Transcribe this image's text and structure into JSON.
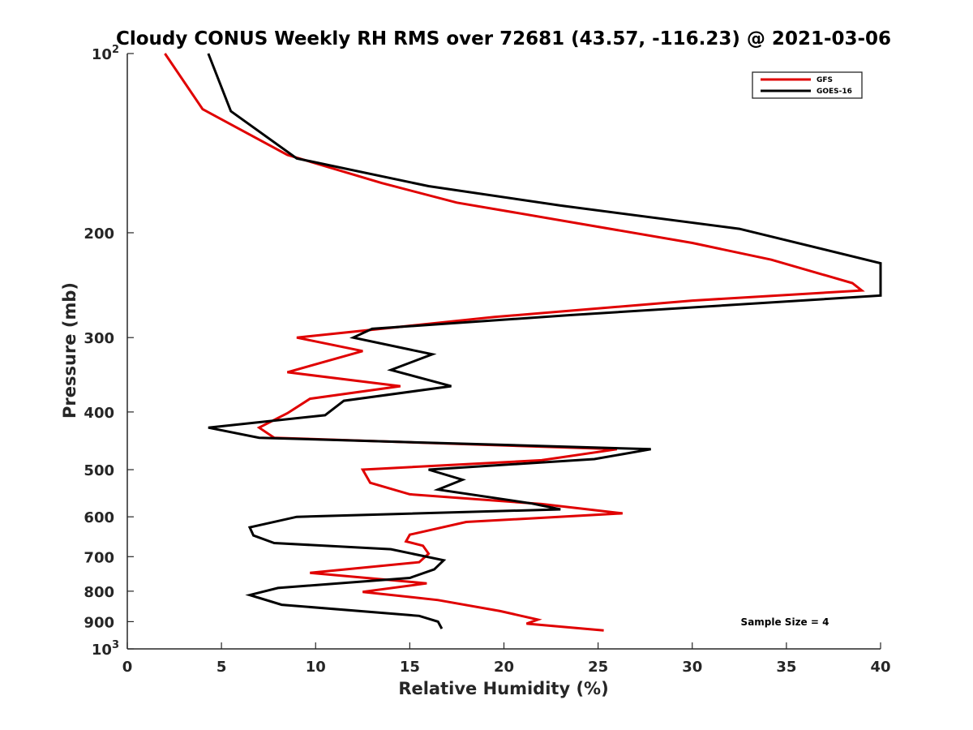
{
  "chart_data": {
    "type": "line",
    "title": "Cloudy CONUS Weekly RH RMS over 72681 (43.57, -116.23) @ 2021-03-06",
    "xlabel": "Relative Humidity (%)",
    "ylabel": "Pressure (mb)",
    "xlim": [
      0,
      40
    ],
    "ylim": [
      100,
      1000
    ],
    "y_scale": "log",
    "y_reversed": true,
    "grid": false,
    "legend_position": "top-right",
    "x_ticks": [
      {
        "value": 0,
        "label": "0"
      },
      {
        "value": 5,
        "label": "5"
      },
      {
        "value": 10,
        "label": "10"
      },
      {
        "value": 15,
        "label": "15"
      },
      {
        "value": 20,
        "label": "20"
      },
      {
        "value": 25,
        "label": "25"
      },
      {
        "value": 30,
        "label": "30"
      },
      {
        "value": 35,
        "label": "35"
      },
      {
        "value": 40,
        "label": "40"
      }
    ],
    "y_ticks": [
      {
        "value": 100,
        "label": "10",
        "sup": "2"
      },
      {
        "value": 200,
        "label": "200",
        "sup": ""
      },
      {
        "value": 300,
        "label": "300",
        "sup": ""
      },
      {
        "value": 400,
        "label": "400",
        "sup": ""
      },
      {
        "value": 500,
        "label": "500",
        "sup": ""
      },
      {
        "value": 600,
        "label": "600",
        "sup": ""
      },
      {
        "value": 700,
        "label": "700",
        "sup": ""
      },
      {
        "value": 800,
        "label": "800",
        "sup": ""
      },
      {
        "value": 900,
        "label": "900",
        "sup": ""
      },
      {
        "value": 1000,
        "label": "10",
        "sup": "3"
      }
    ],
    "series": [
      {
        "name": "GFS",
        "color": "#e00000",
        "points": [
          [
            2.0,
            100
          ],
          [
            4.0,
            124
          ],
          [
            8.5,
            148
          ],
          [
            13.5,
            165
          ],
          [
            17.5,
            178
          ],
          [
            24.0,
            193
          ],
          [
            30.0,
            208
          ],
          [
            34.2,
            222
          ],
          [
            38.5,
            243
          ],
          [
            39.0,
            250
          ],
          [
            30.0,
            260
          ],
          [
            19.5,
            277
          ],
          [
            9.0,
            300
          ],
          [
            12.5,
            316
          ],
          [
            8.5,
            343
          ],
          [
            14.5,
            362
          ],
          [
            9.7,
            380
          ],
          [
            8.5,
            402
          ],
          [
            7.0,
            425
          ],
          [
            7.8,
            442
          ],
          [
            26.0,
            462
          ],
          [
            22.0,
            482
          ],
          [
            12.5,
            500
          ],
          [
            12.9,
            526
          ],
          [
            15.0,
            550
          ],
          [
            22.0,
            571
          ],
          [
            26.3,
            592
          ],
          [
            18.0,
            612
          ],
          [
            15.0,
            643
          ],
          [
            14.8,
            660
          ],
          [
            15.7,
            671
          ],
          [
            16.0,
            692
          ],
          [
            15.5,
            715
          ],
          [
            9.7,
            745
          ],
          [
            15.9,
            776
          ],
          [
            12.5,
            802
          ],
          [
            16.5,
            828
          ],
          [
            19.8,
            864
          ],
          [
            21.8,
            893
          ],
          [
            21.2,
            907
          ],
          [
            25.3,
            931
          ]
        ]
      },
      {
        "name": "GOES-16",
        "color": "#000000",
        "points": [
          [
            4.3,
            100
          ],
          [
            5.5,
            125
          ],
          [
            9.0,
            150
          ],
          [
            16.0,
            167
          ],
          [
            23.0,
            180
          ],
          [
            32.5,
            197
          ],
          [
            40.0,
            225
          ],
          [
            40.0,
            255
          ],
          [
            23.5,
            275
          ],
          [
            13.0,
            290
          ],
          [
            12.0,
            300
          ],
          [
            16.2,
            320
          ],
          [
            14.0,
            340
          ],
          [
            17.2,
            362
          ],
          [
            11.5,
            383
          ],
          [
            10.5,
            405
          ],
          [
            4.3,
            425
          ],
          [
            7.0,
            442
          ],
          [
            27.8,
            462
          ],
          [
            24.8,
            480
          ],
          [
            16.0,
            500
          ],
          [
            17.8,
            520
          ],
          [
            16.5,
            540
          ],
          [
            21.5,
            570
          ],
          [
            23.0,
            583
          ],
          [
            9.0,
            600
          ],
          [
            6.5,
            625
          ],
          [
            6.7,
            645
          ],
          [
            7.8,
            664
          ],
          [
            14.0,
            680
          ],
          [
            16.8,
            710
          ],
          [
            16.3,
            735
          ],
          [
            15.0,
            760
          ],
          [
            8.0,
            790
          ],
          [
            6.5,
            812
          ],
          [
            8.2,
            843
          ],
          [
            15.5,
            880
          ],
          [
            16.5,
            900
          ],
          [
            16.7,
            925
          ]
        ]
      }
    ],
    "annotations": [
      {
        "text": "Sample Size = 4"
      }
    ]
  }
}
